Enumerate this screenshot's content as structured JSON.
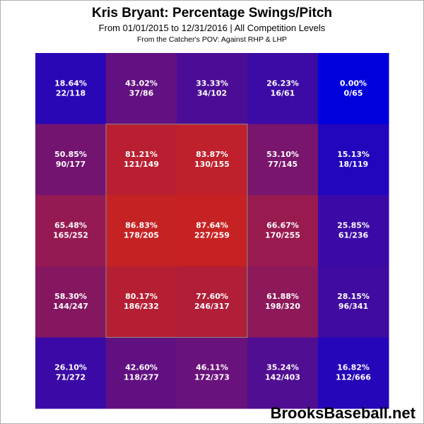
{
  "title": "Kris Bryant: Percentage Swings/Pitch",
  "subtitle": "From 01/01/2015 to 12/31/2016 | All Competition Levels",
  "subtitle2": "From the Catcher's POV:  Against RHP & LHP",
  "brand": "BrooksBaseball.net",
  "chart_data": {
    "type": "heatmap",
    "title": "Kris Bryant: Percentage Swings/Pitch",
    "rows": 5,
    "cols": 5,
    "strike_zone": {
      "rows": [
        1,
        3
      ],
      "cols": [
        1,
        2
      ]
    },
    "color_scale": {
      "low": "#0000dd",
      "high": "#c82222"
    },
    "cells": [
      [
        {
          "pct": "18.64%",
          "ratio": "22/118",
          "value": 18.64
        },
        {
          "pct": "43.02%",
          "ratio": "37/86",
          "value": 43.02
        },
        {
          "pct": "33.33%",
          "ratio": "34/102",
          "value": 33.33
        },
        {
          "pct": "26.23%",
          "ratio": "16/61",
          "value": 26.23
        },
        {
          "pct": "0.00%",
          "ratio": "0/65",
          "value": 0.0
        }
      ],
      [
        {
          "pct": "50.85%",
          "ratio": "90/177",
          "value": 50.85
        },
        {
          "pct": "81.21%",
          "ratio": "121/149",
          "value": 81.21
        },
        {
          "pct": "83.87%",
          "ratio": "130/155",
          "value": 83.87
        },
        {
          "pct": "53.10%",
          "ratio": "77/145",
          "value": 53.1
        },
        {
          "pct": "15.13%",
          "ratio": "18/119",
          "value": 15.13
        }
      ],
      [
        {
          "pct": "65.48%",
          "ratio": "165/252",
          "value": 65.48
        },
        {
          "pct": "86.83%",
          "ratio": "178/205",
          "value": 86.83
        },
        {
          "pct": "87.64%",
          "ratio": "227/259",
          "value": 87.64
        },
        {
          "pct": "66.67%",
          "ratio": "170/255",
          "value": 66.67
        },
        {
          "pct": "25.85%",
          "ratio": "61/236",
          "value": 25.85
        }
      ],
      [
        {
          "pct": "58.30%",
          "ratio": "144/247",
          "value": 58.3
        },
        {
          "pct": "80.17%",
          "ratio": "186/232",
          "value": 80.17
        },
        {
          "pct": "77.60%",
          "ratio": "246/317",
          "value": 77.6
        },
        {
          "pct": "61.88%",
          "ratio": "198/320",
          "value": 61.88
        },
        {
          "pct": "28.15%",
          "ratio": "96/341",
          "value": 28.15
        }
      ],
      [
        {
          "pct": "26.10%",
          "ratio": "71/272",
          "value": 26.1
        },
        {
          "pct": "42.60%",
          "ratio": "118/277",
          "value": 42.6
        },
        {
          "pct": "46.11%",
          "ratio": "172/373",
          "value": 46.11
        },
        {
          "pct": "35.24%",
          "ratio": "142/403",
          "value": 35.24
        },
        {
          "pct": "16.82%",
          "ratio": "112/666",
          "value": 16.82
        }
      ]
    ]
  }
}
